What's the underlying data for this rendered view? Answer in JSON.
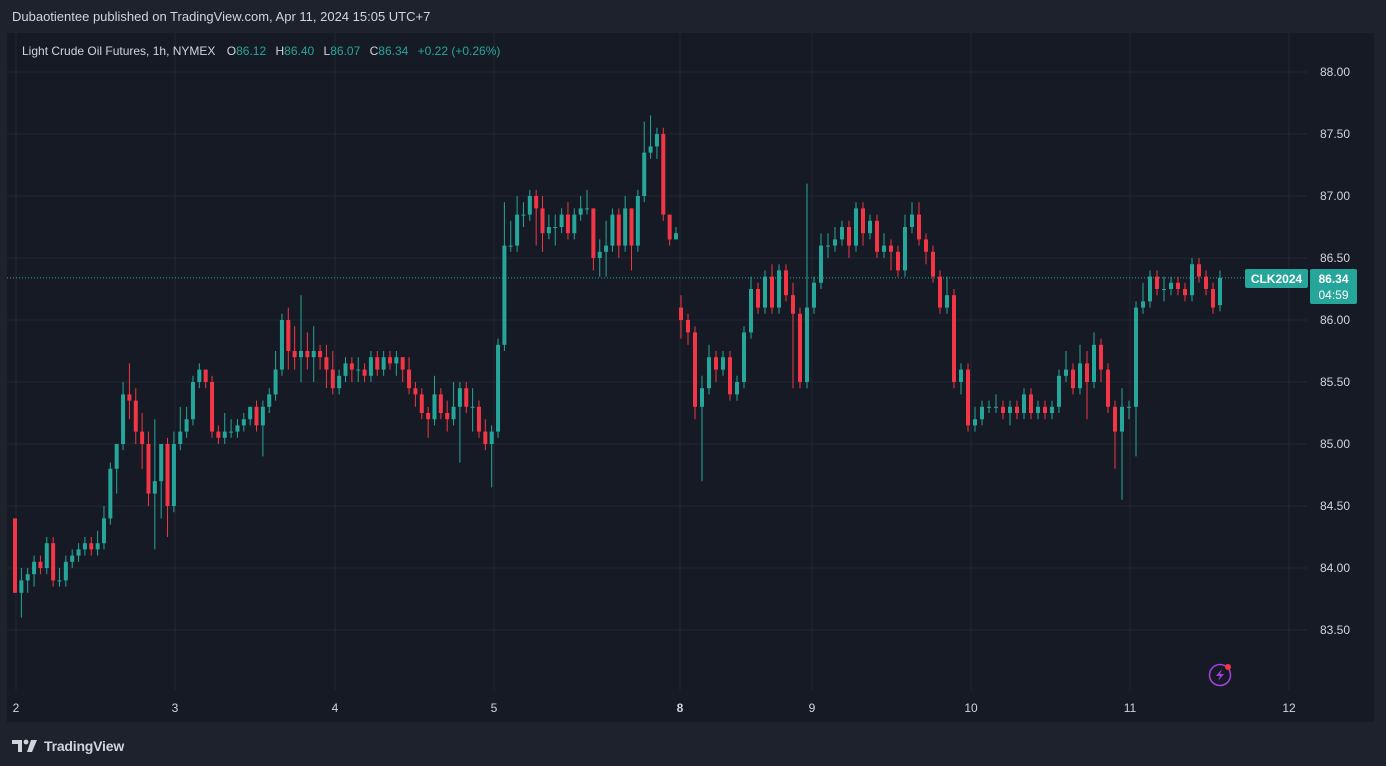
{
  "header": {
    "publisher": "Dubaotientee published on TradingView.com, Apr 11, 2024 15:05 UTC+7"
  },
  "legend": {
    "symbol": "Light Crude Oil Futures, 1h, NYMEX",
    "o_label": "O",
    "o_value": "86.12",
    "h_label": "H",
    "h_value": "86.40",
    "l_label": "L",
    "l_value": "86.07",
    "c_label": "C",
    "c_value": "86.34",
    "change": "+0.22 (+0.26%)"
  },
  "price_tag": {
    "ticker": "CLK2024",
    "price": "86.34",
    "countdown": "04:59"
  },
  "footer": {
    "brand": "TradingView"
  },
  "colors": {
    "up": "#26a69a",
    "down": "#f23645",
    "bg": "#161a25",
    "frame": "#1e222d",
    "grid": "#232733",
    "text": "#d1d4dc",
    "accent": "#a040e0"
  },
  "icons": {
    "alert": "lightning-alert-icon",
    "logo": "tradingview-logo-icon"
  },
  "chart_data": {
    "type": "candlestick",
    "y_ticks": [
      "88.00",
      "87.50",
      "87.00",
      "86.50",
      "86.00",
      "85.50",
      "85.00",
      "84.50",
      "84.00",
      "83.50"
    ],
    "ylim": [
      83.0,
      88.2
    ],
    "x_ticks": [
      "2",
      "3",
      "4",
      "5",
      "8",
      "9",
      "10",
      "11",
      "12"
    ],
    "bold_x_tick": "8",
    "last_price": 86.34,
    "candles": [
      [
        84.4,
        83.8,
        84.4,
        83.8
      ],
      [
        83.8,
        83.9,
        84.0,
        83.6
      ],
      [
        83.9,
        83.95,
        84.0,
        83.8
      ],
      [
        83.95,
        84.05,
        84.1,
        83.85
      ],
      [
        84.05,
        84.0,
        84.1,
        83.95
      ],
      [
        84.0,
        84.2,
        84.25,
        83.95
      ],
      [
        84.2,
        83.9,
        84.25,
        83.85
      ],
      [
        83.9,
        83.9,
        84.0,
        83.85
      ],
      [
        83.9,
        84.05,
        84.1,
        83.85
      ],
      [
        84.05,
        84.1,
        84.15,
        84.0
      ],
      [
        84.1,
        84.15,
        84.2,
        84.05
      ],
      [
        84.15,
        84.2,
        84.25,
        84.1
      ],
      [
        84.2,
        84.15,
        84.25,
        84.1
      ],
      [
        84.15,
        84.2,
        84.3,
        84.1
      ],
      [
        84.2,
        84.4,
        84.5,
        84.15
      ],
      [
        84.4,
        84.8,
        84.85,
        84.35
      ],
      [
        84.8,
        85.0,
        85.0,
        84.6
      ],
      [
        85.0,
        85.4,
        85.5,
        84.95
      ],
      [
        85.4,
        85.35,
        85.65,
        85.2
      ],
      [
        85.35,
        85.1,
        85.45,
        85.0
      ],
      [
        85.1,
        85.0,
        85.25,
        84.8
      ],
      [
        85.0,
        84.6,
        85.1,
        84.5
      ],
      [
        84.6,
        84.7,
        85.2,
        84.15
      ],
      [
        84.7,
        85.0,
        85.0,
        84.4
      ],
      [
        85.0,
        84.5,
        85.05,
        84.25
      ],
      [
        84.5,
        85.0,
        85.1,
        84.45
      ],
      [
        85.0,
        85.1,
        85.3,
        84.95
      ],
      [
        85.1,
        85.2,
        85.3,
        85.05
      ],
      [
        85.2,
        85.5,
        85.55,
        85.15
      ],
      [
        85.5,
        85.6,
        85.65,
        85.45
      ],
      [
        85.6,
        85.5,
        85.6,
        85.45
      ],
      [
        85.5,
        85.1,
        85.55,
        85.05
      ],
      [
        85.1,
        85.05,
        85.15,
        85.0
      ],
      [
        85.05,
        85.1,
        85.25,
        85.0
      ],
      [
        85.1,
        85.1,
        85.2,
        85.05
      ],
      [
        85.1,
        85.15,
        85.2,
        85.05
      ],
      [
        85.15,
        85.2,
        85.25,
        85.1
      ],
      [
        85.2,
        85.3,
        85.3,
        85.15
      ],
      [
        85.3,
        85.15,
        85.35,
        85.1
      ],
      [
        85.15,
        85.3,
        85.35,
        84.9
      ],
      [
        85.3,
        85.4,
        85.45,
        85.25
      ],
      [
        85.4,
        85.6,
        85.75,
        85.35
      ],
      [
        85.6,
        86.0,
        86.05,
        85.55
      ],
      [
        86.0,
        85.75,
        86.1,
        85.6
      ],
      [
        85.75,
        85.7,
        85.95,
        85.6
      ],
      [
        85.7,
        85.75,
        86.2,
        85.5
      ],
      [
        85.75,
        85.7,
        85.9,
        85.6
      ],
      [
        85.7,
        85.75,
        85.95,
        85.5
      ],
      [
        85.75,
        85.7,
        85.8,
        85.6
      ],
      [
        85.7,
        85.6,
        85.8,
        85.45
      ],
      [
        85.6,
        85.45,
        85.75,
        85.4
      ],
      [
        85.45,
        85.55,
        85.6,
        85.4
      ],
      [
        85.55,
        85.65,
        85.7,
        85.5
      ],
      [
        85.65,
        85.6,
        85.7,
        85.5
      ],
      [
        85.6,
        85.6,
        85.7,
        85.5
      ],
      [
        85.6,
        85.55,
        85.65,
        85.5
      ],
      [
        85.55,
        85.7,
        85.75,
        85.5
      ],
      [
        85.7,
        85.6,
        85.75,
        85.55
      ],
      [
        85.6,
        85.7,
        85.75,
        85.55
      ],
      [
        85.7,
        85.65,
        85.75,
        85.6
      ],
      [
        85.65,
        85.7,
        85.75,
        85.55
      ],
      [
        85.7,
        85.6,
        85.7,
        85.5
      ],
      [
        85.6,
        85.45,
        85.7,
        85.4
      ],
      [
        85.45,
        85.4,
        85.5,
        85.3
      ],
      [
        85.4,
        85.25,
        85.45,
        85.2
      ],
      [
        85.25,
        85.2,
        85.3,
        85.05
      ],
      [
        85.2,
        85.4,
        85.55,
        85.15
      ],
      [
        85.4,
        85.25,
        85.45,
        85.2
      ],
      [
        85.25,
        85.2,
        85.35,
        85.1
      ],
      [
        85.2,
        85.3,
        85.5,
        85.15
      ],
      [
        85.3,
        85.45,
        85.5,
        84.85
      ],
      [
        85.45,
        85.3,
        85.5,
        85.25
      ],
      [
        85.3,
        85.3,
        85.45,
        85.1
      ],
      [
        85.3,
        85.1,
        85.35,
        85.05
      ],
      [
        85.1,
        85.0,
        85.2,
        84.95
      ],
      [
        85.0,
        85.1,
        85.15,
        84.65
      ],
      [
        85.1,
        85.8,
        85.85,
        85.05
      ],
      [
        85.8,
        86.6,
        86.95,
        85.75
      ],
      [
        86.6,
        86.6,
        86.8,
        86.55
      ],
      [
        86.6,
        86.85,
        87.0,
        86.55
      ],
      [
        86.85,
        86.85,
        86.95,
        86.75
      ],
      [
        86.85,
        87.0,
        87.05,
        86.8
      ],
      [
        87.0,
        86.9,
        87.05,
        86.6
      ],
      [
        86.9,
        86.7,
        87.0,
        86.55
      ],
      [
        86.7,
        86.75,
        86.85,
        86.65
      ],
      [
        86.75,
        86.75,
        86.85,
        86.6
      ],
      [
        86.75,
        86.85,
        86.9,
        86.7
      ],
      [
        86.85,
        86.7,
        86.95,
        86.65
      ],
      [
        86.7,
        86.85,
        86.9,
        86.65
      ],
      [
        86.85,
        86.9,
        87.0,
        86.8
      ],
      [
        86.9,
        86.9,
        87.05,
        86.85
      ],
      [
        86.9,
        86.5,
        86.9,
        86.4
      ],
      [
        86.5,
        86.55,
        86.65,
        86.35
      ],
      [
        86.55,
        86.6,
        86.8,
        86.35
      ],
      [
        86.6,
        86.85,
        86.9,
        86.55
      ],
      [
        86.85,
        86.6,
        86.9,
        86.5
      ],
      [
        86.6,
        86.9,
        87.0,
        86.55
      ],
      [
        86.9,
        86.6,
        86.9,
        86.4
      ],
      [
        86.6,
        87.0,
        87.05,
        86.55
      ],
      [
        87.0,
        87.35,
        87.6,
        86.95
      ],
      [
        87.35,
        87.4,
        87.65,
        87.3
      ],
      [
        87.4,
        87.5,
        87.55,
        87.3
      ],
      [
        87.5,
        86.85,
        87.55,
        86.8
      ],
      [
        86.85,
        86.65,
        86.85,
        86.6
      ],
      [
        86.65,
        86.7,
        86.75,
        86.65
      ],
      [
        86.1,
        86.0,
        86.2,
        85.85
      ],
      [
        86.0,
        85.9,
        86.05,
        85.8
      ],
      [
        85.9,
        85.3,
        85.95,
        85.2
      ],
      [
        85.3,
        85.45,
        85.55,
        84.7
      ],
      [
        85.45,
        85.7,
        85.8,
        85.4
      ],
      [
        85.7,
        85.6,
        85.75,
        85.5
      ],
      [
        85.6,
        85.7,
        85.75,
        85.55
      ],
      [
        85.7,
        85.4,
        85.75,
        85.35
      ],
      [
        85.4,
        85.5,
        85.55,
        85.35
      ],
      [
        85.5,
        85.9,
        85.95,
        85.45
      ],
      [
        85.9,
        86.25,
        86.35,
        85.85
      ],
      [
        86.25,
        86.1,
        86.3,
        86.05
      ],
      [
        86.1,
        86.35,
        86.4,
        86.05
      ],
      [
        86.35,
        86.1,
        86.45,
        86.05
      ],
      [
        86.1,
        86.4,
        86.45,
        86.05
      ],
      [
        86.4,
        86.2,
        86.45,
        86.15
      ],
      [
        86.2,
        86.05,
        86.3,
        85.45
      ],
      [
        86.05,
        85.5,
        86.1,
        85.45
      ],
      [
        85.5,
        86.1,
        87.1,
        85.45
      ],
      [
        86.1,
        86.3,
        86.35,
        86.05
      ],
      [
        86.3,
        86.6,
        86.7,
        86.25
      ],
      [
        86.6,
        86.6,
        86.7,
        86.5
      ],
      [
        86.6,
        86.65,
        86.75,
        86.55
      ],
      [
        86.65,
        86.75,
        86.8,
        86.6
      ],
      [
        86.75,
        86.6,
        86.8,
        86.5
      ],
      [
        86.6,
        86.9,
        86.95,
        86.55
      ],
      [
        86.9,
        86.7,
        86.95,
        86.6
      ],
      [
        86.7,
        86.8,
        86.85,
        86.65
      ],
      [
        86.8,
        86.55,
        86.85,
        86.5
      ],
      [
        86.55,
        86.6,
        86.7,
        86.5
      ],
      [
        86.6,
        86.55,
        86.65,
        86.4
      ],
      [
        86.55,
        86.4,
        86.6,
        86.35
      ],
      [
        86.4,
        86.75,
        86.85,
        86.35
      ],
      [
        86.75,
        86.85,
        86.95,
        86.7
      ],
      [
        86.85,
        86.65,
        86.95,
        86.6
      ],
      [
        86.65,
        86.55,
        86.7,
        86.45
      ],
      [
        86.55,
        86.35,
        86.6,
        86.3
      ],
      [
        86.35,
        86.1,
        86.4,
        86.05
      ],
      [
        86.1,
        86.2,
        86.35,
        86.05
      ],
      [
        86.2,
        85.5,
        86.25,
        85.45
      ],
      [
        85.5,
        85.6,
        85.65,
        85.4
      ],
      [
        85.6,
        85.15,
        85.65,
        85.1
      ],
      [
        85.15,
        85.2,
        85.3,
        85.1
      ],
      [
        85.2,
        85.3,
        85.35,
        85.15
      ],
      [
        85.3,
        85.3,
        85.35,
        85.25
      ],
      [
        85.3,
        85.3,
        85.4,
        85.25
      ],
      [
        85.3,
        85.25,
        85.35,
        85.2
      ],
      [
        85.25,
        85.3,
        85.35,
        85.15
      ],
      [
        85.3,
        85.25,
        85.35,
        85.2
      ],
      [
        85.25,
        85.4,
        85.45,
        85.2
      ],
      [
        85.4,
        85.25,
        85.45,
        85.2
      ],
      [
        85.25,
        85.3,
        85.35,
        85.2
      ],
      [
        85.3,
        85.25,
        85.35,
        85.2
      ],
      [
        85.25,
        85.3,
        85.35,
        85.2
      ],
      [
        85.3,
        85.55,
        85.6,
        85.25
      ],
      [
        85.55,
        85.6,
        85.75,
        85.5
      ],
      [
        85.6,
        85.45,
        85.65,
        85.4
      ],
      [
        85.45,
        85.65,
        85.8,
        85.4
      ],
      [
        85.65,
        85.5,
        85.75,
        85.2
      ],
      [
        85.5,
        85.8,
        85.9,
        85.45
      ],
      [
        85.8,
        85.6,
        85.85,
        85.5
      ],
      [
        85.6,
        85.3,
        85.65,
        85.25
      ],
      [
        85.3,
        85.1,
        85.35,
        84.8
      ],
      [
        85.1,
        85.3,
        85.45,
        84.55
      ],
      [
        85.3,
        85.3,
        85.35,
        85.2
      ],
      [
        85.3,
        86.1,
        86.15,
        84.9
      ],
      [
        86.1,
        86.15,
        86.3,
        86.05
      ],
      [
        86.15,
        86.35,
        86.4,
        86.1
      ],
      [
        86.35,
        86.25,
        86.4,
        86.2
      ],
      [
        86.25,
        86.25,
        86.35,
        86.15
      ],
      [
        86.25,
        86.3,
        86.35,
        86.2
      ],
      [
        86.3,
        86.25,
        86.35,
        86.2
      ],
      [
        86.25,
        86.2,
        86.3,
        86.15
      ],
      [
        86.2,
        86.45,
        86.5,
        86.15
      ],
      [
        86.45,
        86.35,
        86.5,
        86.3
      ],
      [
        86.35,
        86.25,
        86.4,
        86.2
      ],
      [
        86.25,
        86.1,
        86.3,
        86.05
      ],
      [
        86.12,
        86.34,
        86.4,
        86.07
      ]
    ]
  }
}
